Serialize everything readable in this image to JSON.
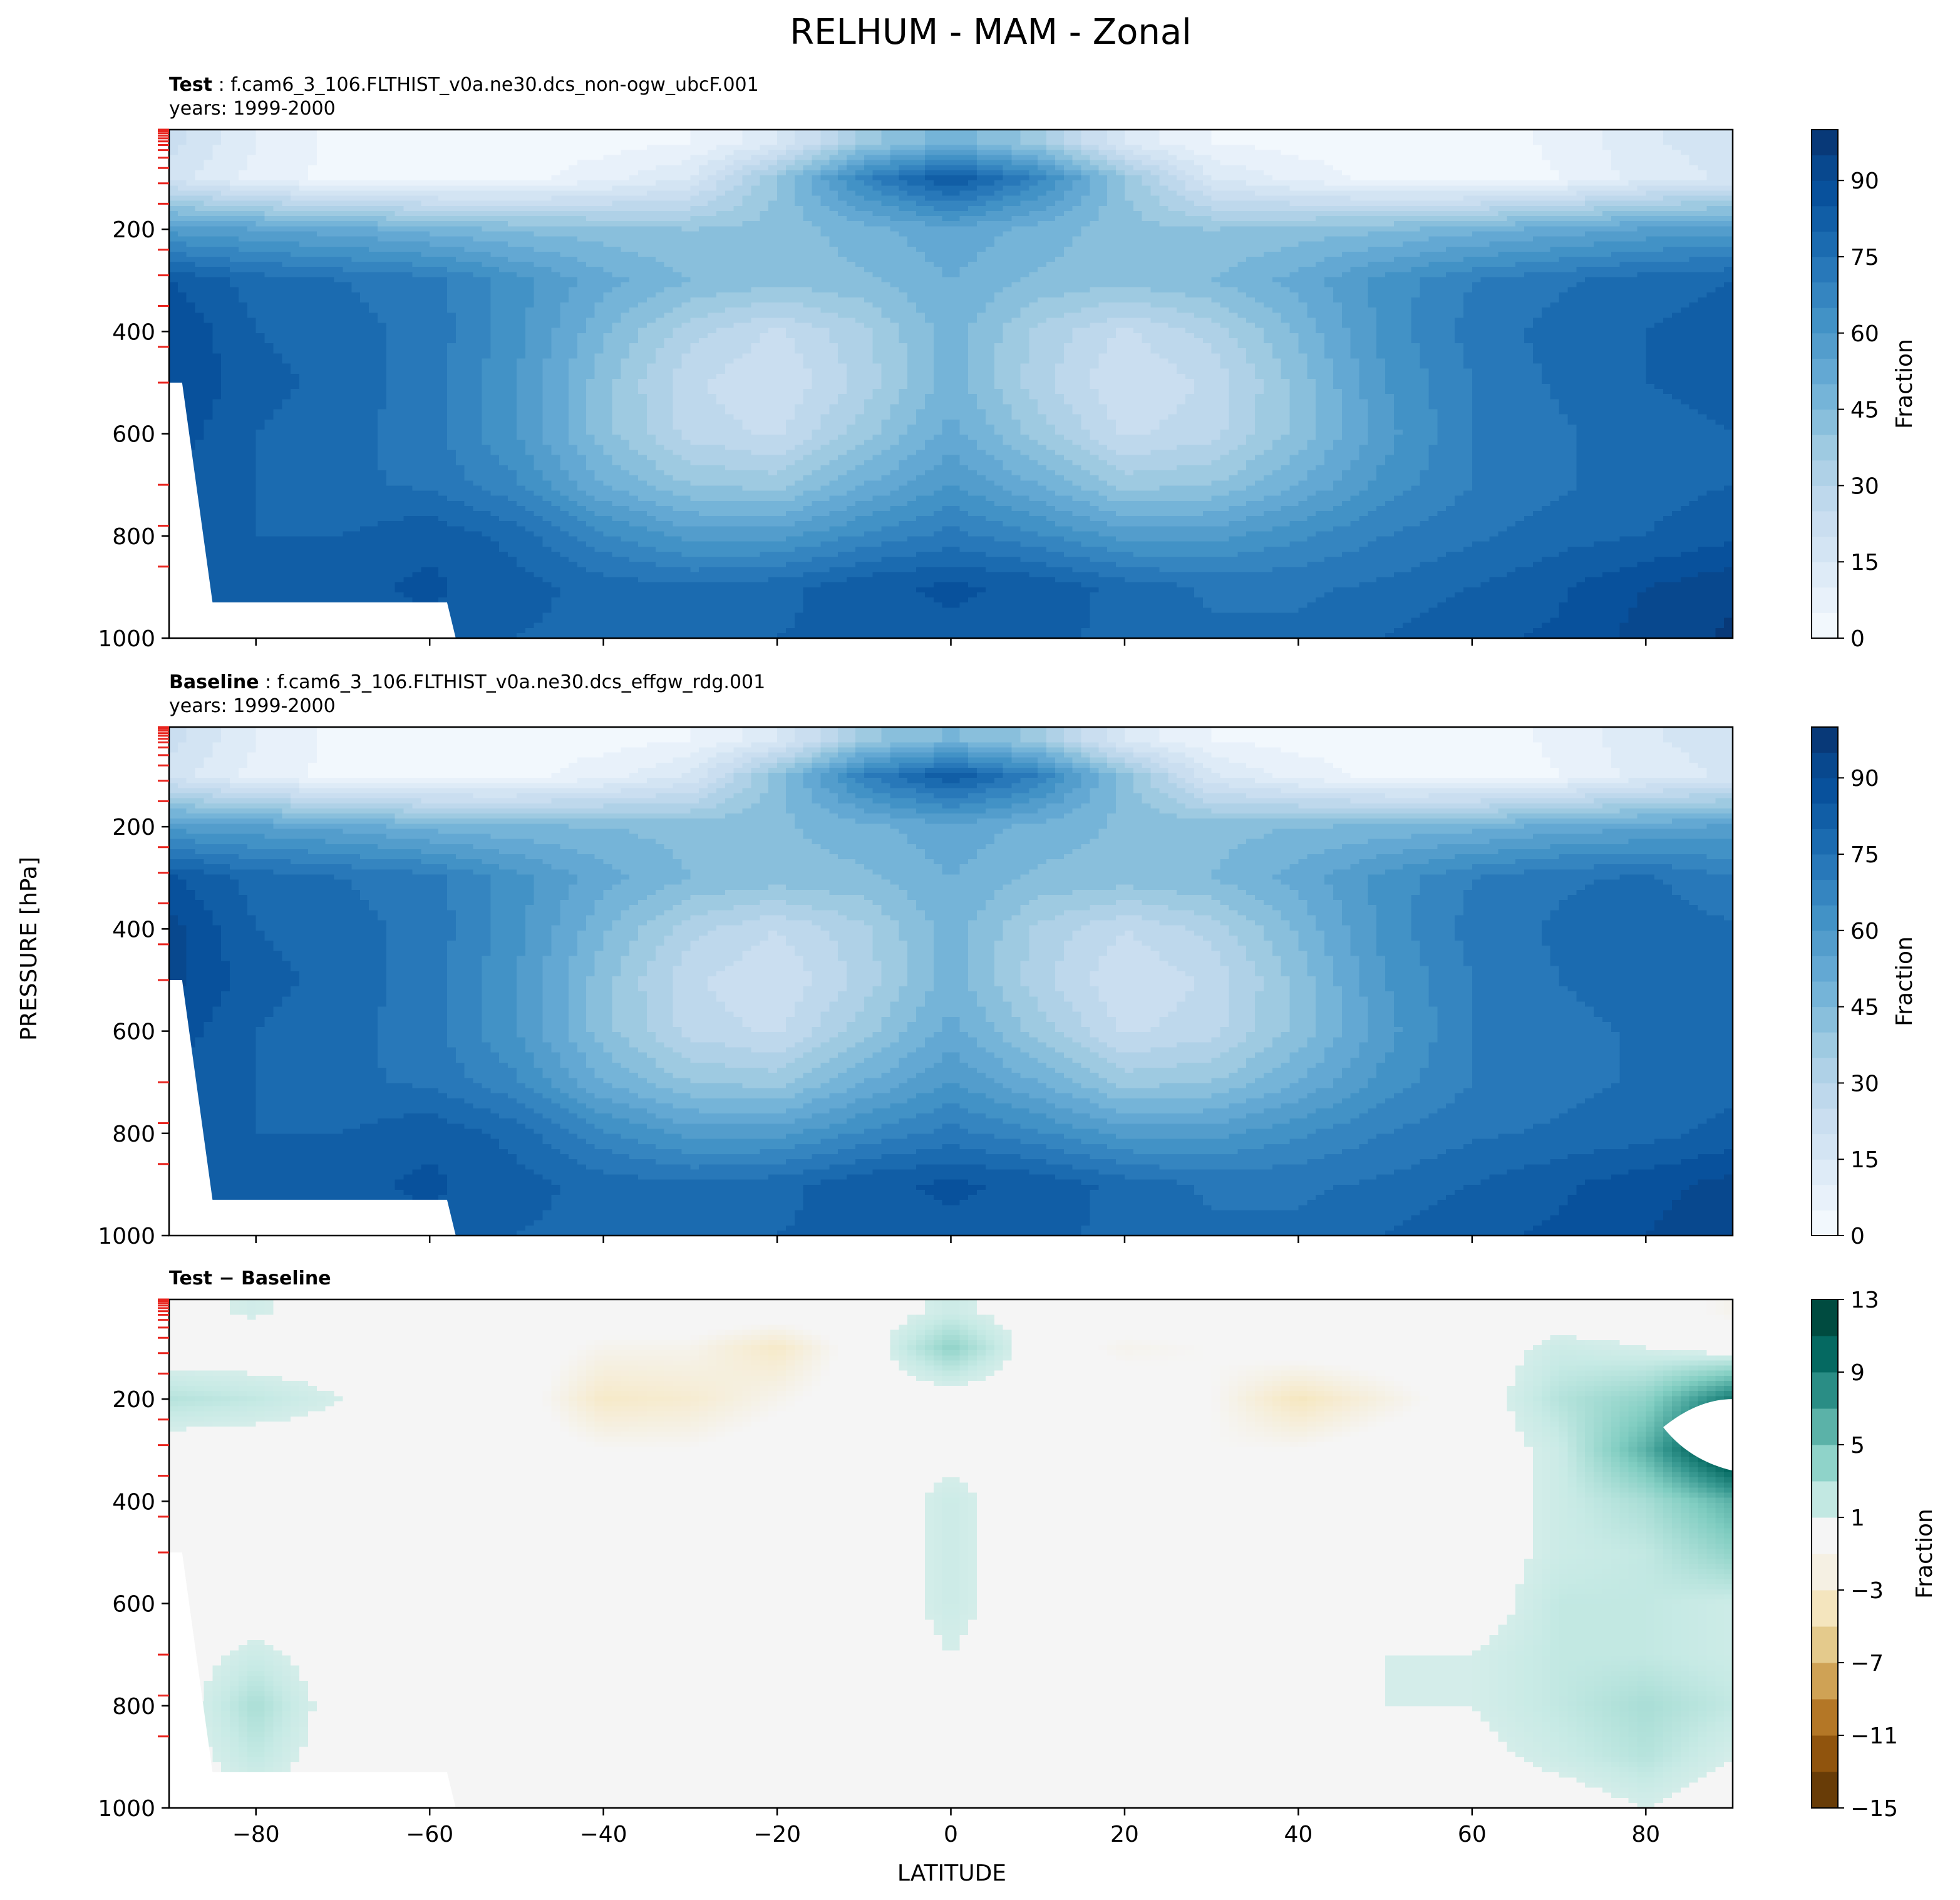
{
  "title": "RELHUM - MAM - Zonal",
  "ylabel": "PRESSURE [hPa]",
  "xlabel": "LATITUDE",
  "colors": {
    "blues": [
      "#f7fbff",
      "#eaf3fb",
      "#deebf7",
      "#d0e2f2",
      "#c6dbef",
      "#b3d3e8",
      "#9ecae1",
      "#84bcdb",
      "#6baed6",
      "#57a0ce",
      "#4292c6",
      "#3282be",
      "#2171b5",
      "#1361a9",
      "#08519c",
      "#08468b",
      "#08306b"
    ],
    "diverging": [
      "#543005",
      "#8c510a",
      "#bf812d",
      "#dfc27d",
      "#f6e8c3",
      "#f5f5f5",
      "#c7eae5",
      "#80cdc1",
      "#35978f",
      "#01665e",
      "#003c30"
    ]
  },
  "panels": [
    {
      "label_bold": "Test",
      "label_rest": " : f.cam6_3_106.FLTHIST_v0a.ne30.dcs_non-ogw_ubcF.001",
      "years": "years: 1999-2000",
      "colorbar": {
        "ticks": [
          "0",
          "15",
          "30",
          "45",
          "60",
          "75",
          "90"
        ],
        "label": "Fraction"
      }
    },
    {
      "label_bold": "Baseline",
      "label_rest": " : f.cam6_3_106.FLTHIST_v0a.ne30.dcs_effgw_rdg.001",
      "years": "years: 1999-2000",
      "colorbar": {
        "ticks": [
          "0",
          "15",
          "30",
          "45",
          "60",
          "75",
          "90"
        ],
        "label": "Fraction"
      }
    },
    {
      "label_bold": "Test − Baseline",
      "label_rest": "",
      "years": "",
      "colorbar": {
        "ticks": [
          "13",
          "9",
          "5",
          "1",
          "−3",
          "−7",
          "−11",
          "−15"
        ],
        "label": "Fraction"
      }
    }
  ],
  "yticks": [
    "200",
    "400",
    "600",
    "800",
    "1000"
  ],
  "xticks": [
    "−80",
    "−60",
    "−40",
    "−20",
    "0",
    "20",
    "40",
    "60",
    "80"
  ],
  "chart_data": [
    {
      "type": "heatmap",
      "title": "Test",
      "x": [
        -90,
        -80,
        -70,
        -60,
        -50,
        -40,
        -30,
        -20,
        -10,
        0,
        10,
        20,
        30,
        40,
        50,
        60,
        70,
        80,
        90
      ],
      "y": [
        30,
        100,
        200,
        300,
        400,
        500,
        600,
        700,
        800,
        900,
        1000
      ],
      "z": [
        [
          22,
          10,
          3,
          2,
          2,
          3,
          5,
          14,
          38,
          48,
          38,
          14,
          5,
          3,
          2,
          2,
          6,
          14,
          18
        ],
        [
          18,
          8,
          3,
          2,
          3,
          8,
          15,
          40,
          68,
          86,
          68,
          40,
          15,
          8,
          3,
          2,
          5,
          12,
          16
        ],
        [
          58,
          55,
          52,
          48,
          44,
          42,
          40,
          42,
          48,
          54,
          48,
          42,
          40,
          42,
          44,
          48,
          52,
          56,
          58
        ],
        [
          85,
          78,
          75,
          72,
          62,
          52,
          45,
          42,
          44,
          50,
          44,
          42,
          45,
          52,
          62,
          70,
          74,
          78,
          80
        ],
        [
          90,
          80,
          77,
          73,
          62,
          46,
          32,
          24,
          34,
          48,
          34,
          24,
          32,
          46,
          62,
          72,
          77,
          80,
          82
        ],
        [
          90,
          82,
          78,
          72,
          60,
          42,
          26,
          20,
          32,
          48,
          32,
          20,
          26,
          42,
          60,
          70,
          76,
          80,
          82
        ],
        [
          88,
          80,
          77,
          72,
          60,
          42,
          28,
          24,
          38,
          52,
          38,
          24,
          28,
          42,
          58,
          70,
          74,
          78,
          80
        ],
        [
          84,
          80,
          76,
          74,
          66,
          50,
          40,
          38,
          50,
          60,
          50,
          38,
          40,
          50,
          62,
          70,
          74,
          78,
          80
        ],
        [
          80,
          80,
          80,
          84,
          78,
          66,
          58,
          58,
          66,
          72,
          66,
          58,
          58,
          64,
          70,
          74,
          78,
          80,
          84
        ],
        [
          80,
          82,
          84,
          86,
          82,
          78,
          76,
          78,
          84,
          86,
          84,
          78,
          74,
          74,
          76,
          80,
          84,
          90,
          94
        ],
        [
          80,
          82,
          82,
          84,
          80,
          78,
          80,
          80,
          82,
          84,
          82,
          78,
          76,
          76,
          80,
          84,
          86,
          92,
          96
        ]
      ],
      "levels": [
        0,
        5,
        10,
        15,
        20,
        25,
        30,
        35,
        40,
        45,
        50,
        55,
        60,
        65,
        70,
        75,
        80,
        85,
        90,
        95,
        100
      ]
    },
    {
      "type": "heatmap",
      "title": "Baseline",
      "x": [
        -90,
        -80,
        -70,
        -60,
        -50,
        -40,
        -30,
        -20,
        -10,
        0,
        10,
        20,
        30,
        40,
        50,
        60,
        70,
        80,
        90
      ],
      "y": [
        30,
        100,
        200,
        300,
        400,
        500,
        600,
        700,
        800,
        900,
        1000
      ],
      "z": [
        [
          22,
          10,
          3,
          2,
          2,
          3,
          5,
          14,
          38,
          46,
          38,
          14,
          5,
          3,
          2,
          2,
          6,
          14,
          18
        ],
        [
          18,
          8,
          3,
          2,
          3,
          8,
          16,
          42,
          70,
          84,
          70,
          42,
          16,
          8,
          3,
          2,
          5,
          12,
          16
        ],
        [
          58,
          56,
          53,
          48,
          46,
          45,
          43,
          44,
          48,
          54,
          48,
          44,
          43,
          45,
          46,
          48,
          52,
          54,
          56
        ],
        [
          86,
          78,
          75,
          72,
          62,
          52,
          45,
          43,
          44,
          50,
          44,
          43,
          45,
          52,
          62,
          70,
          74,
          76,
          70
        ],
        [
          92,
          80,
          77,
          73,
          62,
          46,
          32,
          25,
          34,
          48,
          34,
          25,
          32,
          46,
          62,
          72,
          76,
          78,
          76
        ],
        [
          92,
          82,
          78,
          72,
          60,
          42,
          26,
          20,
          32,
          48,
          32,
          20,
          26,
          42,
          60,
          70,
          75,
          78,
          78
        ],
        [
          88,
          80,
          77,
          72,
          60,
          42,
          28,
          24,
          38,
          52,
          38,
          24,
          28,
          42,
          58,
          70,
          73,
          76,
          78
        ],
        [
          84,
          80,
          76,
          74,
          66,
          50,
          40,
          38,
          50,
          60,
          50,
          38,
          40,
          50,
          62,
          70,
          73,
          76,
          78
        ],
        [
          80,
          80,
          80,
          84,
          78,
          66,
          58,
          58,
          66,
          72,
          66,
          58,
          58,
          64,
          70,
          74,
          76,
          78,
          82
        ],
        [
          80,
          82,
          84,
          86,
          82,
          78,
          76,
          78,
          84,
          86,
          84,
          78,
          74,
          74,
          76,
          80,
          84,
          88,
          92
        ],
        [
          80,
          82,
          82,
          84,
          80,
          78,
          80,
          80,
          82,
          84,
          82,
          78,
          76,
          76,
          80,
          84,
          86,
          90,
          94
        ]
      ],
      "levels": [
        0,
        5,
        10,
        15,
        20,
        25,
        30,
        35,
        40,
        45,
        50,
        55,
        60,
        65,
        70,
        75,
        80,
        85,
        90,
        95,
        100
      ]
    },
    {
      "type": "heatmap",
      "title": "Test − Baseline",
      "x": [
        -90,
        -80,
        -70,
        -60,
        -50,
        -40,
        -30,
        -20,
        -10,
        0,
        10,
        20,
        30,
        40,
        50,
        60,
        70,
        80,
        90
      ],
      "y": [
        30,
        100,
        200,
        300,
        400,
        500,
        600,
        700,
        800,
        900,
        1000
      ],
      "z": [
        [
          0.5,
          1.2,
          0,
          0,
          0,
          0,
          0,
          0,
          0,
          1.5,
          0,
          0,
          0,
          0,
          0,
          0,
          0,
          0,
          -1.5
        ],
        [
          0,
          0,
          0,
          0,
          0,
          -1.5,
          -1.5,
          -3.5,
          0,
          4,
          0,
          -1.5,
          -1,
          0,
          0,
          0,
          1.5,
          1,
          0
        ],
        [
          2.5,
          2,
          1,
          0,
          0,
          -3.5,
          -3,
          -1.5,
          0,
          0,
          0,
          0,
          -1,
          -4,
          -2,
          0,
          2.5,
          4,
          9
        ],
        [
          0,
          0,
          0,
          0,
          0,
          -1,
          -1,
          0,
          0,
          0.5,
          0,
          0,
          -1,
          -1,
          0,
          0,
          1.5,
          6,
          13
        ],
        [
          0,
          0,
          0,
          0.5,
          0,
          0,
          0,
          0,
          0,
          1.5,
          0,
          0,
          0,
          0,
          0,
          0,
          1.5,
          3,
          6
        ],
        [
          0,
          0,
          0,
          0,
          0,
          0,
          -1,
          0,
          0,
          1.5,
          0,
          0,
          0,
          0,
          0,
          0,
          1.5,
          2,
          4
        ],
        [
          -1,
          0,
          0,
          -1,
          0,
          -1,
          0,
          0,
          0,
          1.5,
          0,
          -1,
          0,
          0,
          0.5,
          0,
          2,
          2,
          1.5
        ],
        [
          0,
          1.5,
          0,
          -1,
          0,
          -1,
          0,
          0,
          0,
          1,
          0,
          -1,
          0,
          0,
          1,
          1,
          2,
          2,
          1.5
        ],
        [
          0,
          3,
          0,
          0,
          0,
          0,
          -1,
          0,
          0,
          1,
          0,
          0,
          0,
          0,
          1,
          1,
          2,
          3,
          2
        ],
        [
          0,
          2,
          0,
          0,
          0,
          0,
          0,
          0,
          0,
          0.5,
          0,
          0,
          0,
          0,
          0,
          0.5,
          1.5,
          2.5,
          1
        ],
        [
          0,
          0.5,
          0,
          0,
          0,
          0,
          0,
          0,
          0,
          0,
          0,
          0,
          0,
          0,
          0,
          0,
          0,
          1,
          0
        ]
      ],
      "levels": [
        -15,
        -13,
        -11,
        -9,
        -7,
        -5,
        -3,
        -1,
        1,
        3,
        5,
        7,
        9,
        11,
        13
      ]
    }
  ]
}
